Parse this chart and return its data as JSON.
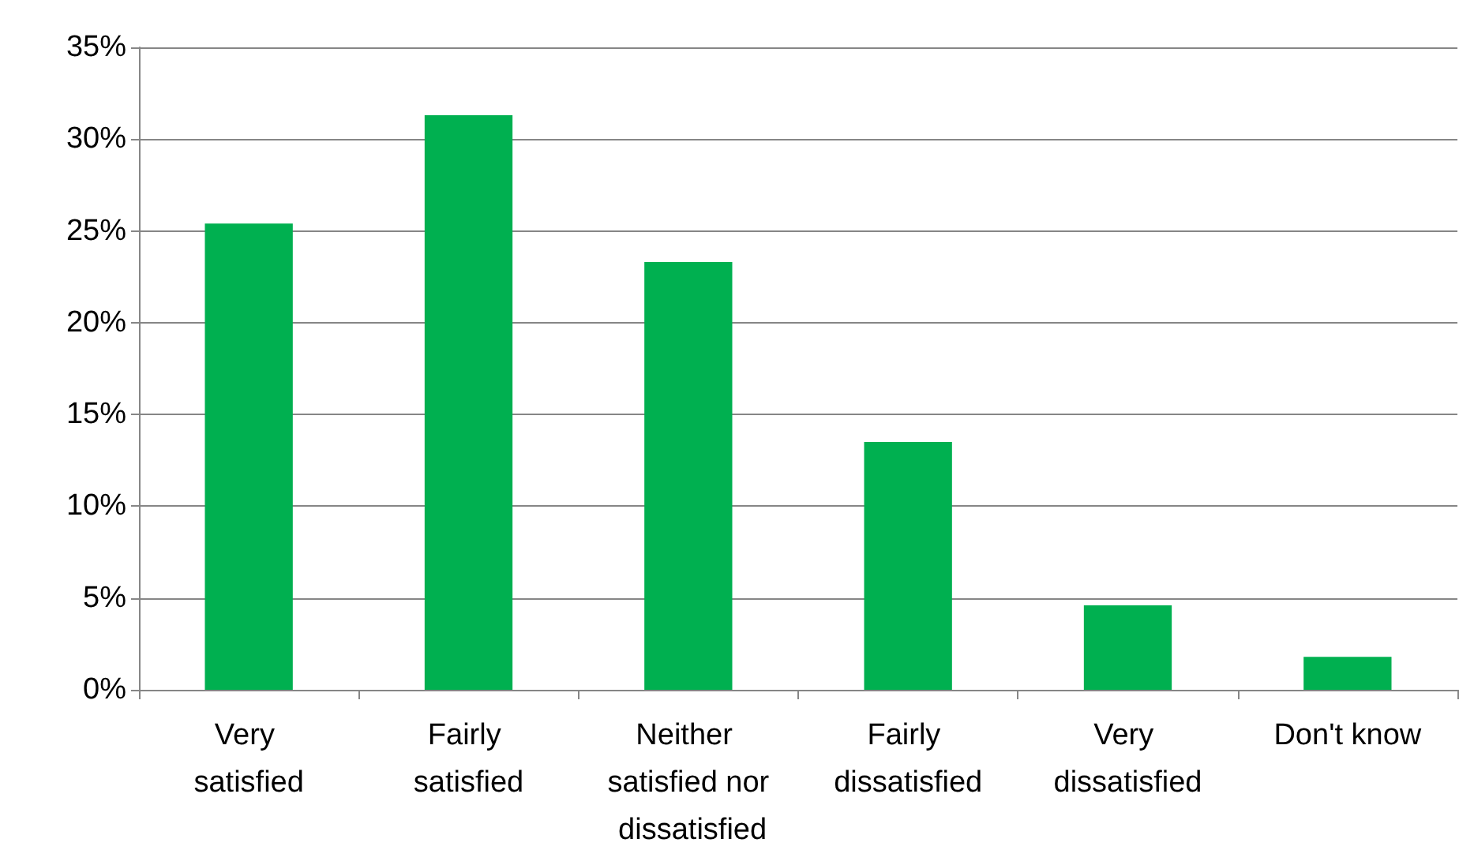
{
  "chart_data": {
    "type": "bar",
    "categories": [
      "Very satisfied",
      "Fairly satisfied",
      "Neither satisfied nor dissatisfied",
      "Fairly dissatisfied",
      "Very dissatisfied",
      "Don't know"
    ],
    "values": [
      25.4,
      31.3,
      23.3,
      13.5,
      4.6,
      1.8
    ],
    "color": "#00b050",
    "ylim": [
      0,
      35
    ],
    "yticks": [
      {
        "value": 0,
        "label": "0%"
      },
      {
        "value": 5,
        "label": "5%"
      },
      {
        "value": 10,
        "label": "10%"
      },
      {
        "value": 15,
        "label": "15%"
      },
      {
        "value": 20,
        "label": "20%"
      },
      {
        "value": 25,
        "label": "25%"
      },
      {
        "value": 30,
        "label": "30%"
      },
      {
        "value": 35,
        "label": "35%"
      }
    ],
    "grid": "y"
  }
}
